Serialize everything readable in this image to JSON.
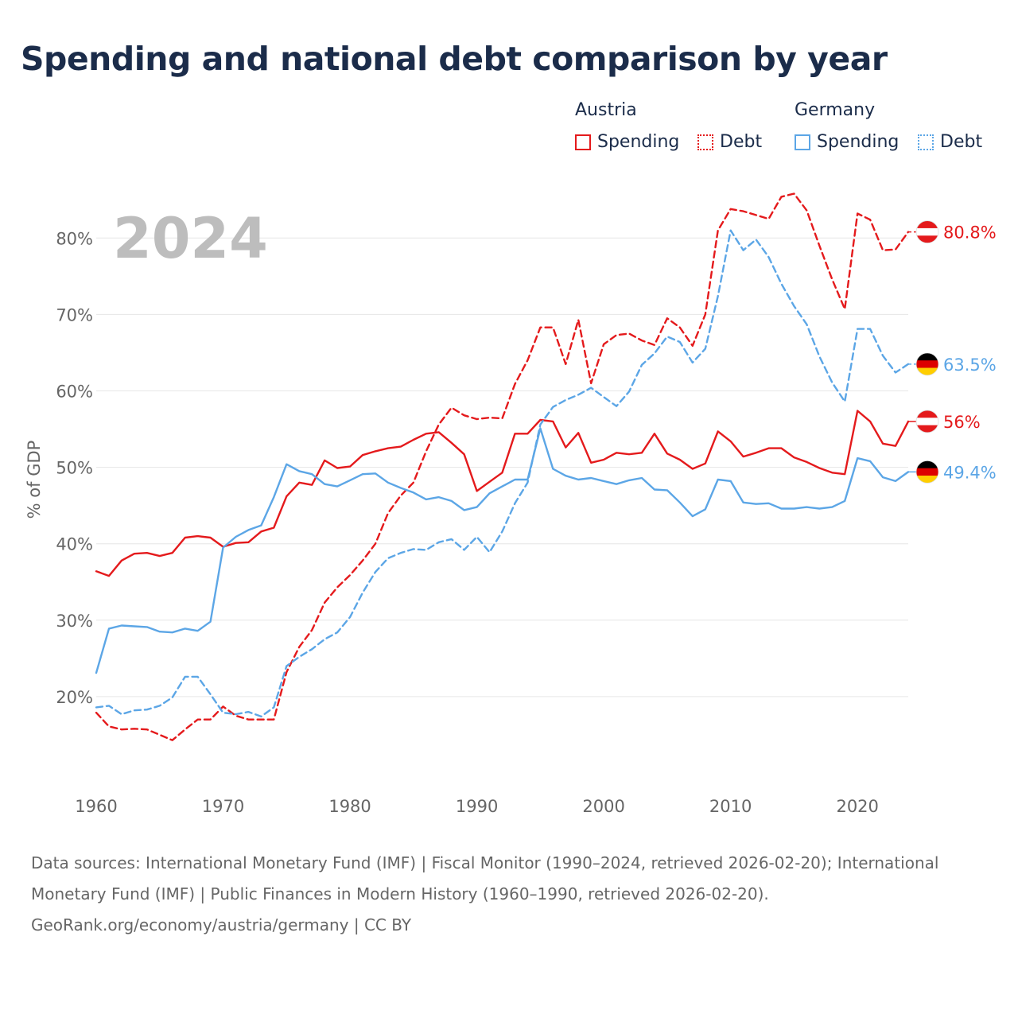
{
  "title": "Spending and national debt comparison by year",
  "legend": {
    "groups": [
      {
        "name": "Austria",
        "items": [
          {
            "label": "Spending",
            "style": "solid",
            "color": "#e41a1c"
          },
          {
            "label": "Debt",
            "style": "dotted",
            "color": "#e41a1c"
          }
        ]
      },
      {
        "name": "Germany",
        "items": [
          {
            "label": "Spending",
            "style": "solid",
            "color": "#5ca6e6"
          },
          {
            "label": "Debt",
            "style": "dotted",
            "color": "#5ca6e6"
          }
        ]
      }
    ]
  },
  "footer": {
    "sources": "Data sources: International Monetary Fund (IMF) | Fiscal Monitor (1990–2024, retrieved 2026-02-20); International Monetary Fund (IMF) | Public Finances in Modern History (1960–1990, retrieved 2026-02-20).",
    "credit": "GeoRank.org/economy/austria/germany | CC BY"
  },
  "colors": {
    "austria": "#e41a1c",
    "germany": "#5ca6e6",
    "grid": "#e6e6e6",
    "axis_text": "#666666",
    "year_watermark": "#bdbdbd"
  },
  "chart_data": {
    "type": "line",
    "year_label": "2024",
    "ylabel": "% of GDP",
    "xlim": [
      1960,
      2024
    ],
    "ylim": [
      10,
      87
    ],
    "x_ticks": [
      1960,
      1970,
      1980,
      1990,
      2000,
      2010,
      2020
    ],
    "y_ticks": [
      20,
      30,
      40,
      50,
      60,
      70,
      80
    ],
    "y_tick_labels": [
      "20%",
      "30%",
      "40%",
      "50%",
      "60%",
      "70%",
      "80%"
    ],
    "x_start": 1960,
    "series": [
      {
        "name": "Austria Spending",
        "country": "austria",
        "style": "solid",
        "end_label": "56%",
        "values": [
          36.4,
          35.8,
          37.8,
          38.7,
          38.8,
          38.4,
          38.8,
          40.8,
          41.0,
          40.8,
          39.6,
          40.1,
          40.2,
          41.6,
          42.1,
          46.2,
          48.0,
          47.7,
          50.9,
          49.9,
          50.1,
          51.6,
          52.1,
          52.5,
          52.7,
          53.6,
          54.4,
          54.6,
          53.2,
          51.7,
          46.9,
          48.1,
          49.3,
          54.4,
          54.4,
          56.2,
          56.0,
          52.6,
          54.5,
          50.6,
          51.0,
          51.9,
          51.7,
          51.9,
          54.4,
          51.8,
          51.0,
          49.8,
          50.5,
          54.7,
          53.4,
          51.4,
          51.9,
          52.5,
          52.5,
          51.3,
          50.7,
          49.9,
          49.3,
          49.1,
          57.4,
          56.0,
          53.1,
          52.8,
          56.0
        ]
      },
      {
        "name": "Austria Debt",
        "country": "austria",
        "style": "dashed",
        "end_label": "80.8%",
        "values": [
          17.9,
          16.1,
          15.7,
          15.8,
          15.7,
          15.0,
          14.3,
          15.7,
          17.0,
          17.0,
          18.7,
          17.5,
          17.0,
          17.0,
          17.0,
          23.2,
          26.5,
          28.7,
          32.3,
          34.3,
          35.9,
          37.8,
          40.0,
          44.0,
          46.3,
          48.0,
          52.1,
          55.6,
          57.8,
          56.8,
          56.3,
          56.5,
          56.4,
          60.9,
          64.0,
          68.3,
          68.3,
          63.5,
          69.3,
          61.0,
          66.1,
          67.3,
          67.5,
          66.6,
          66.0,
          69.5,
          68.3,
          65.9,
          70.0,
          81.0,
          83.8,
          83.5,
          83.0,
          82.5,
          85.4,
          85.8,
          83.6,
          79.0,
          74.6,
          70.7,
          83.2,
          82.4,
          78.4,
          78.5,
          80.8
        ]
      },
      {
        "name": "Germany Spending",
        "country": "germany",
        "style": "solid",
        "end_label": "49.4%",
        "values": [
          23.1,
          28.9,
          29.3,
          29.2,
          29.1,
          28.5,
          28.4,
          28.9,
          28.6,
          29.8,
          39.5,
          40.9,
          41.8,
          42.4,
          46.1,
          50.4,
          49.5,
          49.1,
          47.8,
          47.5,
          48.3,
          49.1,
          49.2,
          48.0,
          47.3,
          46.7,
          45.8,
          46.1,
          45.6,
          44.4,
          44.8,
          46.6,
          47.5,
          48.4,
          48.4,
          55.1,
          49.8,
          48.9,
          48.4,
          48.6,
          48.2,
          47.8,
          48.3,
          48.6,
          47.1,
          47.0,
          45.4,
          43.6,
          44.5,
          48.4,
          48.2,
          45.4,
          45.2,
          45.3,
          44.6,
          44.6,
          44.8,
          44.6,
          44.8,
          45.6,
          51.2,
          50.8,
          48.7,
          48.2,
          49.4
        ]
      },
      {
        "name": "Germany Debt",
        "country": "germany",
        "style": "dashed",
        "end_label": "63.5%",
        "values": [
          18.6,
          18.8,
          17.7,
          18.2,
          18.3,
          18.8,
          19.9,
          22.6,
          22.6,
          20.3,
          17.9,
          17.7,
          18.0,
          17.4,
          18.6,
          24.0,
          25.2,
          26.2,
          27.5,
          28.4,
          30.4,
          33.6,
          36.3,
          38.1,
          38.8,
          39.3,
          39.2,
          40.2,
          40.6,
          39.2,
          40.9,
          38.9,
          41.6,
          45.3,
          48.0,
          55.6,
          57.9,
          58.8,
          59.5,
          60.4,
          59.2,
          58.0,
          59.9,
          63.4,
          64.9,
          67.1,
          66.4,
          63.7,
          65.5,
          72.4,
          81.0,
          78.4,
          79.8,
          77.5,
          74.0,
          71.1,
          68.7,
          64.5,
          61.1,
          58.6,
          68.1,
          68.1,
          64.6,
          62.4,
          63.5
        ]
      }
    ]
  }
}
